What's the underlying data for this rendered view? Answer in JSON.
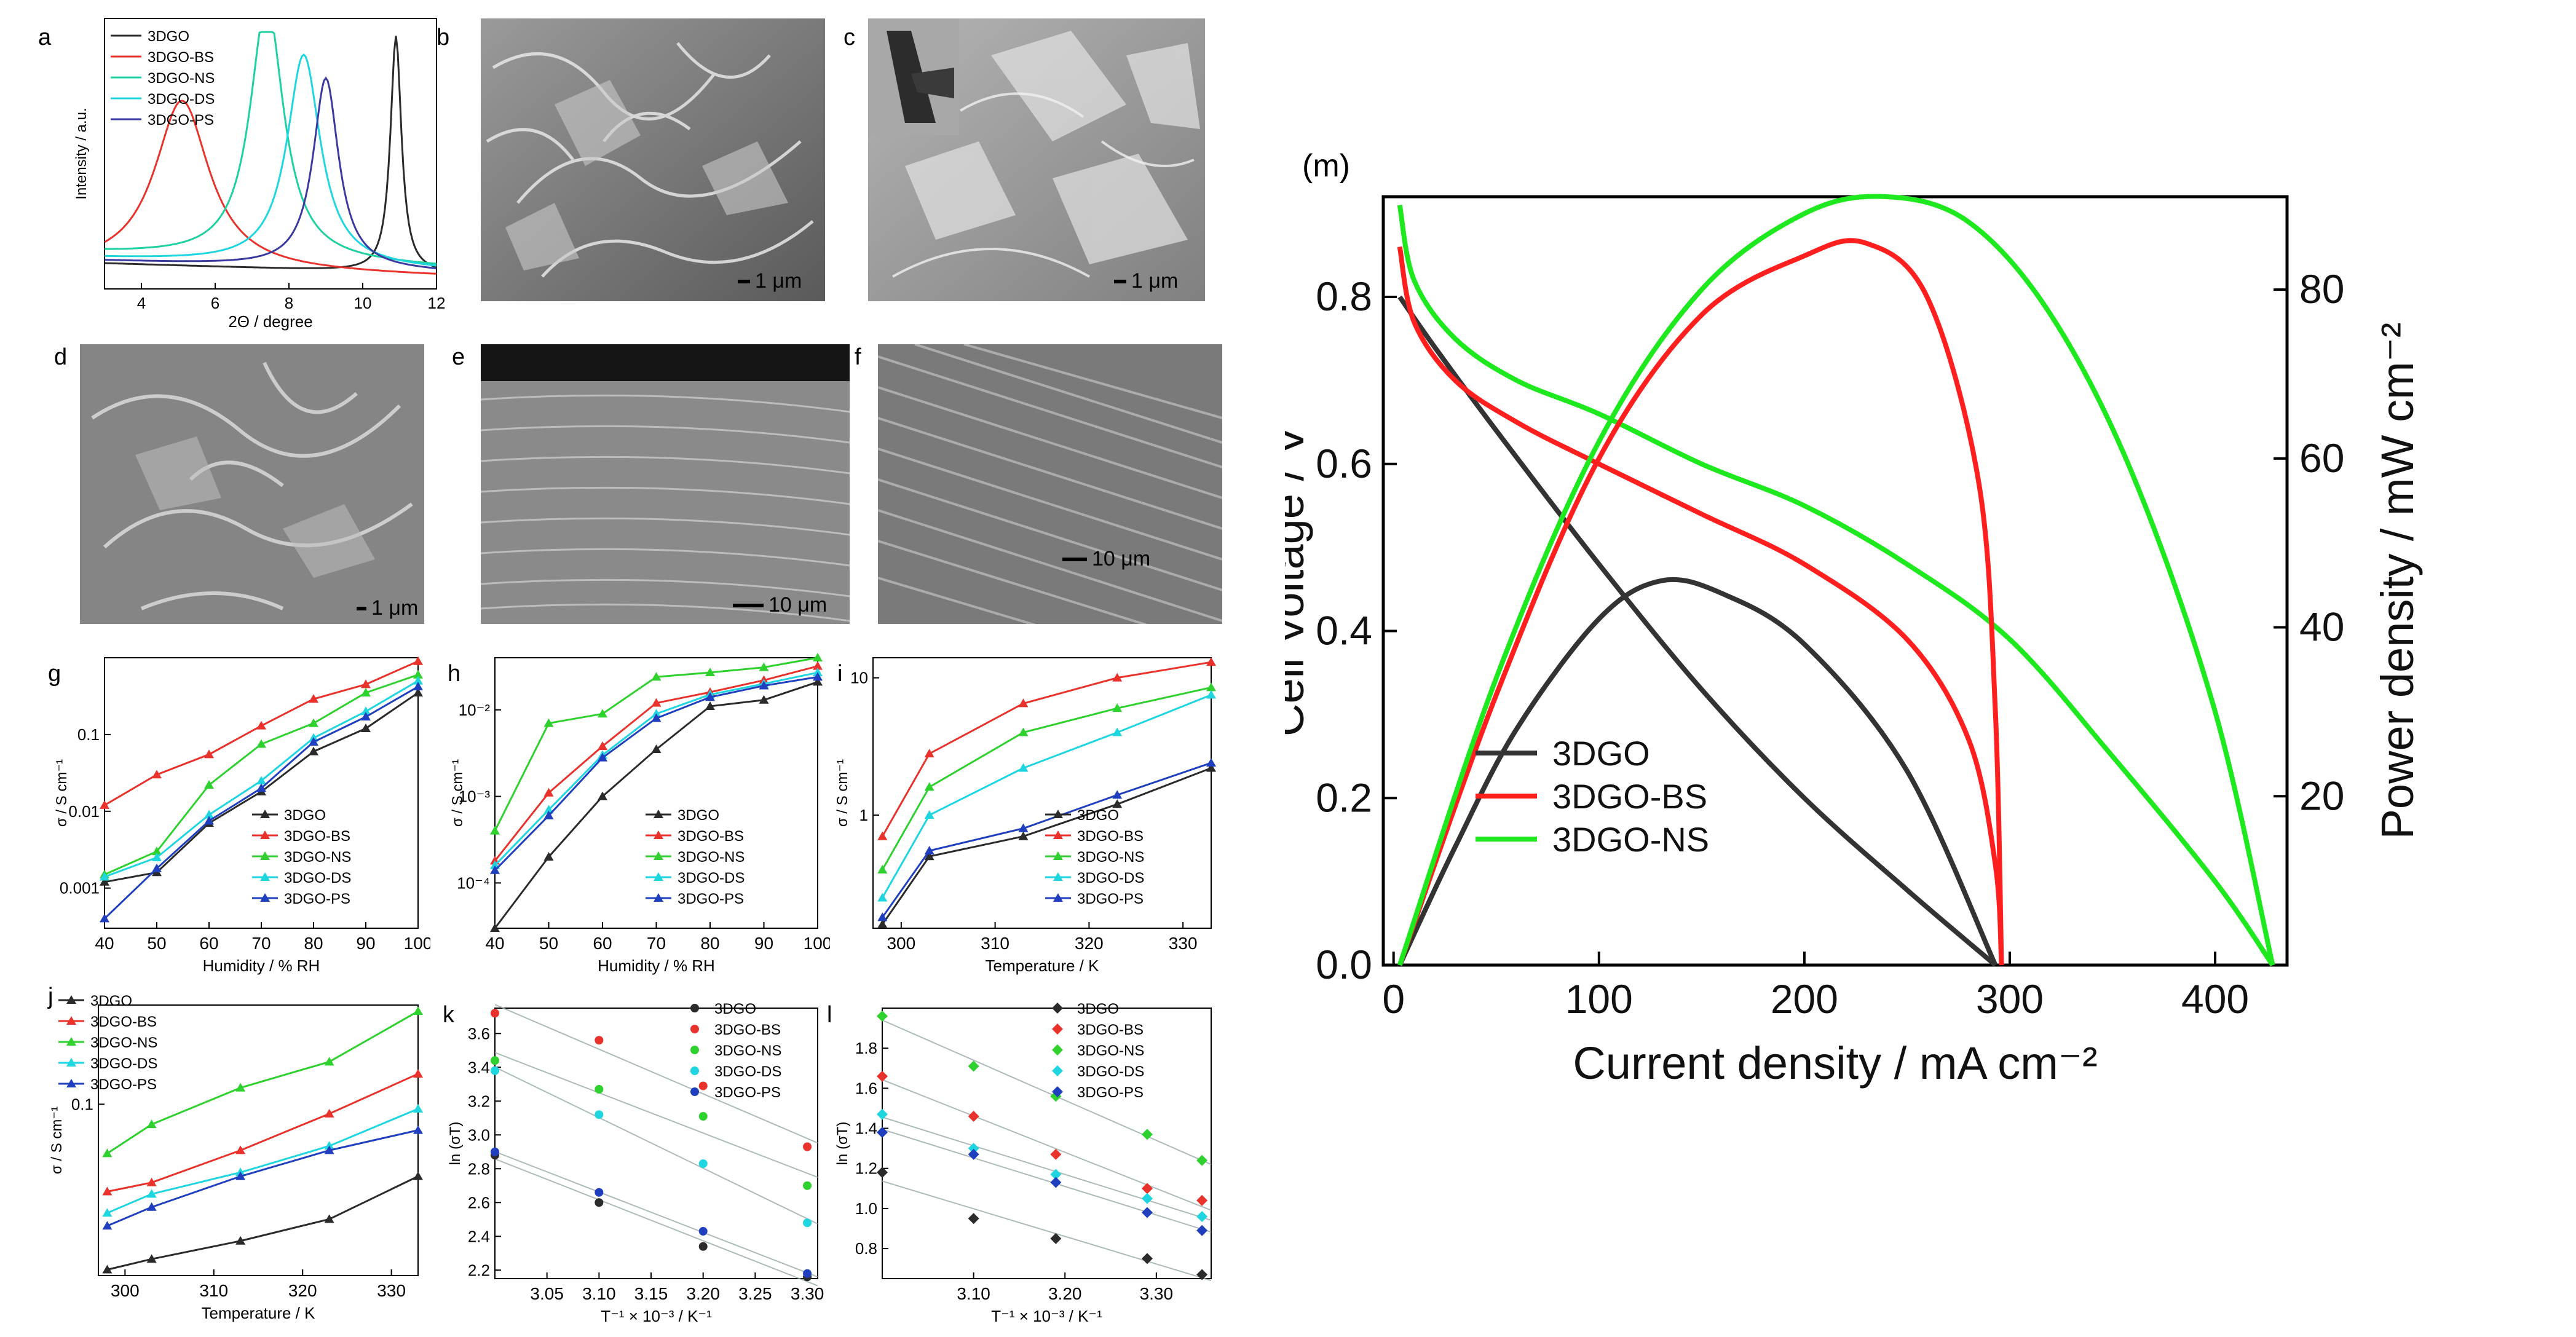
{
  "panel_labels": {
    "a": "a",
    "b": "b",
    "c": "c",
    "d": "d",
    "e": "e",
    "f": "f",
    "g": "g",
    "h": "h",
    "i": "i",
    "j": "j",
    "k": "k",
    "l": "l",
    "m": "(m)"
  },
  "series_names": [
    "3DGO",
    "3DGO-BS",
    "3DGO-NS",
    "3DGO-DS",
    "3DGO-PS"
  ],
  "colors": {
    "3DGO": "#2b2b2b",
    "3DGO-BS": "#e8322b",
    "3DGO-NS": "#2ed12e",
    "3DGO-DS": "#1fd6e0",
    "3DGO-PS": "#1f3fbf",
    "xrd_NS": "#1fd0a0",
    "xrd_PS": "#3a3aa0"
  },
  "sem": {
    "b": {
      "scale": "1 μm"
    },
    "c": {
      "scale": "1 μm"
    },
    "d": {
      "scale": "1 μm"
    },
    "e": {
      "scale": "10 μm"
    },
    "f": {
      "scale": "10 μm"
    }
  },
  "chart_data": [
    {
      "id": "a",
      "type": "line",
      "xlabel": "2Θ / degree",
      "ylabel": "Intensity / a.u.",
      "xlim": [
        3,
        12
      ],
      "ylim": [
        0,
        1
      ],
      "xticks": [
        "4",
        "6",
        "8",
        "10",
        "12"
      ],
      "legend": [
        "3DGO",
        "3DGO-BS",
        "3DGO-NS",
        "3DGO-DS",
        "3DGO-PS"
      ],
      "series": [
        {
          "name": "3DGO",
          "peak": 10.9,
          "height": 0.92,
          "width": 0.18,
          "base": 0.1
        },
        {
          "name": "3DGO-BS",
          "peak": 5.1,
          "height": 0.66,
          "width": 0.9,
          "base": 0.08
        },
        {
          "name": "3DGO-NS",
          "peak": 7.4,
          "height": 1.0,
          "width": 0.55,
          "base": 0.14
        },
        {
          "name": "3DGO-DS",
          "peak": 8.4,
          "height": 0.82,
          "width": 0.55,
          "base": 0.12
        },
        {
          "name": "3DGO-PS",
          "peak": 9.0,
          "height": 0.74,
          "width": 0.42,
          "base": 0.11
        }
      ]
    },
    {
      "id": "g",
      "type": "line",
      "yscale": "log",
      "xlabel": "Humidity / % RH",
      "ylabel": "σ / S cm⁻¹",
      "xlim": [
        40,
        100
      ],
      "ylim": [
        0.0003,
        1.0
      ],
      "xticks": [
        "40",
        "50",
        "60",
        "70",
        "80",
        "90",
        "100"
      ],
      "yticks": [
        "0.001",
        "0.01",
        "0.1"
      ],
      "x": [
        40,
        50,
        60,
        70,
        80,
        90,
        100
      ],
      "series": [
        {
          "name": "3DGO",
          "values": [
            0.0012,
            0.0016,
            0.007,
            0.018,
            0.06,
            0.12,
            0.35
          ]
        },
        {
          "name": "3DGO-BS",
          "values": [
            0.012,
            0.03,
            0.055,
            0.13,
            0.29,
            0.45,
            0.9
          ]
        },
        {
          "name": "3DGO-NS",
          "values": [
            0.0015,
            0.003,
            0.022,
            0.075,
            0.14,
            0.35,
            0.6
          ]
        },
        {
          "name": "3DGO-DS",
          "values": [
            0.0014,
            0.0025,
            0.009,
            0.025,
            0.09,
            0.2,
            0.5
          ]
        },
        {
          "name": "3DGO-PS",
          "values": [
            0.0004,
            0.0018,
            0.0075,
            0.02,
            0.08,
            0.17,
            0.42
          ]
        }
      ],
      "legend": [
        "3DGO",
        "3DGO-BS",
        "3DGO-NS",
        "3DGO-DS",
        "3DGO-PS"
      ]
    },
    {
      "id": "h",
      "type": "line",
      "yscale": "log",
      "xlabel": "Humidity / % RH",
      "ylabel": "σ / S cm⁻¹",
      "xlim": [
        40,
        100
      ],
      "ylim": [
        3e-05,
        0.04
      ],
      "xticks": [
        "40",
        "50",
        "60",
        "70",
        "80",
        "90",
        "100"
      ],
      "yticks": [
        "10⁻⁴",
        "10⁻³",
        "10⁻²"
      ],
      "x": [
        40,
        50,
        60,
        70,
        80,
        90,
        100
      ],
      "series": [
        {
          "name": "3DGO",
          "values": [
            3e-05,
            0.0002,
            0.001,
            0.0035,
            0.011,
            0.013,
            0.021
          ]
        },
        {
          "name": "3DGO-BS",
          "values": [
            0.00018,
            0.0011,
            0.0038,
            0.012,
            0.016,
            0.022,
            0.032
          ]
        },
        {
          "name": "3DGO-NS",
          "values": [
            0.0004,
            0.007,
            0.009,
            0.024,
            0.027,
            0.031,
            0.04
          ]
        },
        {
          "name": "3DGO-DS",
          "values": [
            0.00016,
            0.0007,
            0.003,
            0.009,
            0.015,
            0.02,
            0.027
          ]
        },
        {
          "name": "3DGO-PS",
          "values": [
            0.00014,
            0.0006,
            0.0028,
            0.008,
            0.014,
            0.019,
            0.024
          ]
        }
      ],
      "legend": [
        "3DGO",
        "3DGO-BS",
        "3DGO-NS",
        "3DGO-DS",
        "3DGO-PS"
      ]
    },
    {
      "id": "i",
      "type": "line",
      "yscale": "log",
      "xlabel": "Temperature / K",
      "ylabel": "σ / S cm⁻¹",
      "xlim": [
        297,
        333
      ],
      "ylim": [
        0.15,
        14
      ],
      "xticks": [
        "300",
        "310",
        "320",
        "330"
      ],
      "yticks": [
        "1",
        "10"
      ],
      "x": [
        298,
        303,
        313,
        323,
        333
      ],
      "series": [
        {
          "name": "3DGO",
          "values": [
            0.16,
            0.5,
            0.7,
            1.2,
            2.2
          ]
        },
        {
          "name": "3DGO-BS",
          "values": [
            0.7,
            2.8,
            6.5,
            10,
            13
          ]
        },
        {
          "name": "3DGO-NS",
          "values": [
            0.4,
            1.6,
            4,
            6,
            8.5
          ]
        },
        {
          "name": "3DGO-DS",
          "values": [
            0.25,
            1.0,
            2.2,
            4,
            7.5
          ]
        },
        {
          "name": "3DGO-PS",
          "values": [
            0.18,
            0.55,
            0.8,
            1.4,
            2.4
          ]
        }
      ],
      "legend": [
        "3DGO",
        "3DGO-BS",
        "3DGO-NS",
        "3DGO-DS",
        "3DGO-PS"
      ]
    },
    {
      "id": "j",
      "type": "line",
      "yscale": "log",
      "xlabel": "Temperature / K",
      "ylabel": "σ / S cm⁻¹",
      "xlim": [
        297,
        333
      ],
      "ylim": [
        0.015,
        0.3
      ],
      "xticks": [
        "300",
        "310",
        "320",
        "330"
      ],
      "yticks": [
        "0.1"
      ],
      "x": [
        298,
        303,
        313,
        323,
        333
      ],
      "series": [
        {
          "name": "3DGO",
          "values": [
            0.016,
            0.018,
            0.022,
            0.028,
            0.045
          ]
        },
        {
          "name": "3DGO-BS",
          "values": [
            0.038,
            0.042,
            0.06,
            0.09,
            0.14
          ]
        },
        {
          "name": "3DGO-NS",
          "values": [
            0.058,
            0.08,
            0.12,
            0.16,
            0.28
          ]
        },
        {
          "name": "3DGO-DS",
          "values": [
            0.03,
            0.037,
            0.047,
            0.063,
            0.095
          ]
        },
        {
          "name": "3DGO-PS",
          "values": [
            0.026,
            0.032,
            0.045,
            0.06,
            0.075
          ]
        }
      ],
      "legend": [
        "3DGO",
        "3DGO-BS",
        "3DGO-NS",
        "3DGO-DS",
        "3DGO-PS"
      ]
    },
    {
      "id": "k",
      "type": "scatter",
      "xlabel": "T⁻¹ × 10⁻³ / K⁻¹",
      "ylabel": "ln (σT)",
      "xlim": [
        3.0,
        3.31
      ],
      "ylim": [
        2.15,
        3.75
      ],
      "xticks": [
        "3.05",
        "3.10",
        "3.15",
        "3.20",
        "3.25",
        "3.30"
      ],
      "yticks": [
        "2.2",
        "2.4",
        "2.6",
        "2.8",
        "3.0",
        "3.2",
        "3.4",
        "3.6"
      ],
      "x": [
        3.0,
        3.1,
        3.2,
        3.3
      ],
      "series": [
        {
          "name": "3DGO",
          "values": [
            2.88,
            2.6,
            2.34,
            2.16
          ]
        },
        {
          "name": "3DGO-BS",
          "values": [
            3.72,
            3.56,
            3.29,
            2.93
          ]
        },
        {
          "name": "3DGO-NS",
          "values": [
            3.44,
            3.27,
            3.11,
            2.7
          ]
        },
        {
          "name": "3DGO-DS",
          "values": [
            3.38,
            3.12,
            2.83,
            2.48
          ]
        },
        {
          "name": "3DGO-PS",
          "values": [
            2.9,
            2.66,
            2.43,
            2.18
          ]
        }
      ],
      "legend": [
        "3DGO",
        "3DGO-BS",
        "3DGO-NS",
        "3DGO-DS",
        "3DGO-PS"
      ]
    },
    {
      "id": "l",
      "type": "scatter",
      "xlabel": "T⁻¹ × 10⁻³ / K⁻¹",
      "ylabel": "ln (σT)",
      "xlim": [
        3.0,
        3.36
      ],
      "ylim": [
        0.65,
        2.0
      ],
      "xticks": [
        "3.10",
        "3.20",
        "3.30"
      ],
      "yticks": [
        "0.8",
        "1.0",
        "1.2",
        "1.4",
        "1.6",
        "1.8"
      ],
      "x": [
        3.0,
        3.1,
        3.19,
        3.29,
        3.35
      ],
      "series": [
        {
          "name": "3DGO",
          "values": [
            1.18,
            0.95,
            0.85,
            0.75,
            0.67
          ]
        },
        {
          "name": "3DGO-BS",
          "values": [
            1.66,
            1.46,
            1.27,
            1.1,
            1.04
          ]
        },
        {
          "name": "3DGO-NS",
          "values": [
            1.96,
            1.71,
            1.56,
            1.37,
            1.24
          ]
        },
        {
          "name": "3DGO-DS",
          "values": [
            1.47,
            1.3,
            1.17,
            1.05,
            0.96
          ]
        },
        {
          "name": "3DGO-PS",
          "values": [
            1.38,
            1.27,
            1.13,
            0.98,
            0.89
          ]
        }
      ],
      "legend": [
        "3DGO",
        "3DGO-BS",
        "3DGO-NS",
        "3DGO-DS",
        "3DGO-PS"
      ]
    },
    {
      "id": "m",
      "type": "line",
      "title": "(m)",
      "xlabel": "Current density / mA cm⁻²",
      "ylabel": "Cell Voltage / V",
      "ylabel_right": "Power density / mW cm⁻²",
      "xlim": [
        -5,
        435
      ],
      "ylim": [
        0,
        0.92
      ],
      "ylim_right": [
        0,
        91
      ],
      "xticks": [
        "0",
        "100",
        "200",
        "300",
        "400"
      ],
      "yticks": [
        "0.0",
        "0.2",
        "0.4",
        "0.6",
        "0.8"
      ],
      "yticks_right": [
        "20",
        "40",
        "60",
        "80"
      ],
      "legend": [
        "3DGO",
        "3DGO-BS",
        "3DGO-NS"
      ],
      "voltage": [
        {
          "name": "3DGO",
          "x": [
            3,
            20,
            50,
            100,
            150,
            200,
            250,
            293
          ],
          "y": [
            0.8,
            0.74,
            0.64,
            0.48,
            0.33,
            0.2,
            0.09,
            0.0
          ]
        },
        {
          "name": "3DGO-BS",
          "x": [
            3,
            10,
            30,
            60,
            100,
            150,
            200,
            250,
            280,
            293,
            296
          ],
          "y": [
            0.86,
            0.77,
            0.7,
            0.65,
            0.6,
            0.54,
            0.48,
            0.39,
            0.27,
            0.12,
            0.0
          ]
        },
        {
          "name": "3DGO-NS",
          "x": [
            3,
            10,
            30,
            60,
            100,
            150,
            200,
            250,
            300,
            350,
            400,
            428
          ],
          "y": [
            0.91,
            0.82,
            0.75,
            0.7,
            0.66,
            0.6,
            0.55,
            0.48,
            0.39,
            0.25,
            0.1,
            0.0
          ]
        }
      ],
      "power": [
        {
          "name": "3DGO",
          "x": [
            3,
            30,
            60,
            100,
            130,
            160,
            200,
            250,
            293
          ],
          "y": [
            0,
            14,
            28,
            41,
            45.5,
            44,
            38,
            23,
            0
          ]
        },
        {
          "name": "3DGO-BS",
          "x": [
            3,
            50,
            100,
            150,
            200,
            230,
            260,
            285,
            293,
            296
          ],
          "y": [
            0,
            32,
            60,
            77,
            84,
            85.5,
            79,
            57,
            30,
            0
          ]
        },
        {
          "name": "3DGO-NS",
          "x": [
            3,
            50,
            100,
            150,
            200,
            240,
            280,
            320,
            360,
            400,
            428
          ],
          "y": [
            0,
            34,
            62,
            80,
            89,
            91,
            88,
            77,
            58,
            30,
            0
          ]
        }
      ]
    }
  ]
}
